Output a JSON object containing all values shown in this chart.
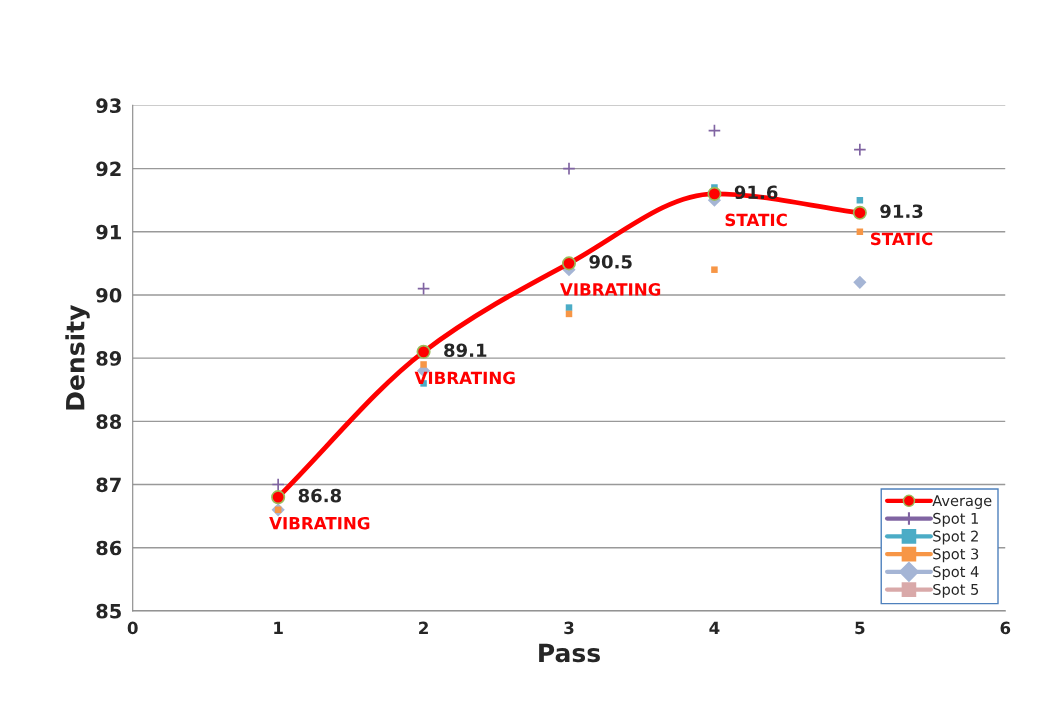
{
  "chart_data": {
    "type": "scatter",
    "xlabel": "Pass",
    "ylabel": "Density",
    "x": [
      1,
      2,
      3,
      4,
      5
    ],
    "xlim": [
      0,
      6
    ],
    "xticks": [
      0,
      1,
      2,
      3,
      4,
      5,
      6
    ],
    "ylim": [
      85,
      93
    ],
    "yticks": [
      85,
      86,
      87,
      88,
      89,
      90,
      91,
      92,
      93
    ],
    "grid": "y",
    "legend": "bottom right",
    "series": [
      {
        "name": "Average",
        "type": "line",
        "color": "#ff0000",
        "marker": "circle",
        "values": [
          86.8,
          89.1,
          90.5,
          91.6,
          91.3
        ],
        "data_labels": true
      },
      {
        "name": "Spot 1",
        "color": "#8064a2",
        "marker": "cross",
        "values": [
          87.0,
          90.1,
          92.0,
          92.6,
          92.3
        ]
      },
      {
        "name": "Spot 2",
        "color": "#4bacc6",
        "marker": "square",
        "values": [
          null,
          88.6,
          89.8,
          91.7,
          91.5
        ]
      },
      {
        "name": "Spot 3",
        "color": "#f79646",
        "marker": "square",
        "values": [
          86.6,
          88.9,
          89.7,
          90.4,
          91.0
        ]
      },
      {
        "name": "Spot 4",
        "color": "#a5b5d5",
        "marker": "diamond",
        "values": [
          86.6,
          88.8,
          90.4,
          91.5,
          90.2
        ]
      },
      {
        "name": "Spot 5",
        "color": "#d9a9a9",
        "marker": "square",
        "values": [
          null,
          null,
          null,
          null,
          null
        ]
      }
    ],
    "annotations": [
      {
        "text": "VIBRATING",
        "x": 1,
        "y": 86.8
      },
      {
        "text": "VIBRATING",
        "x": 2,
        "y": 89.1
      },
      {
        "text": "VIBRATING",
        "x": 3,
        "y": 90.5
      },
      {
        "text": "STATIC",
        "x": 4,
        "y": 91.6
      },
      {
        "text": "STATIC",
        "x": 5,
        "y": 91.3
      }
    ]
  }
}
